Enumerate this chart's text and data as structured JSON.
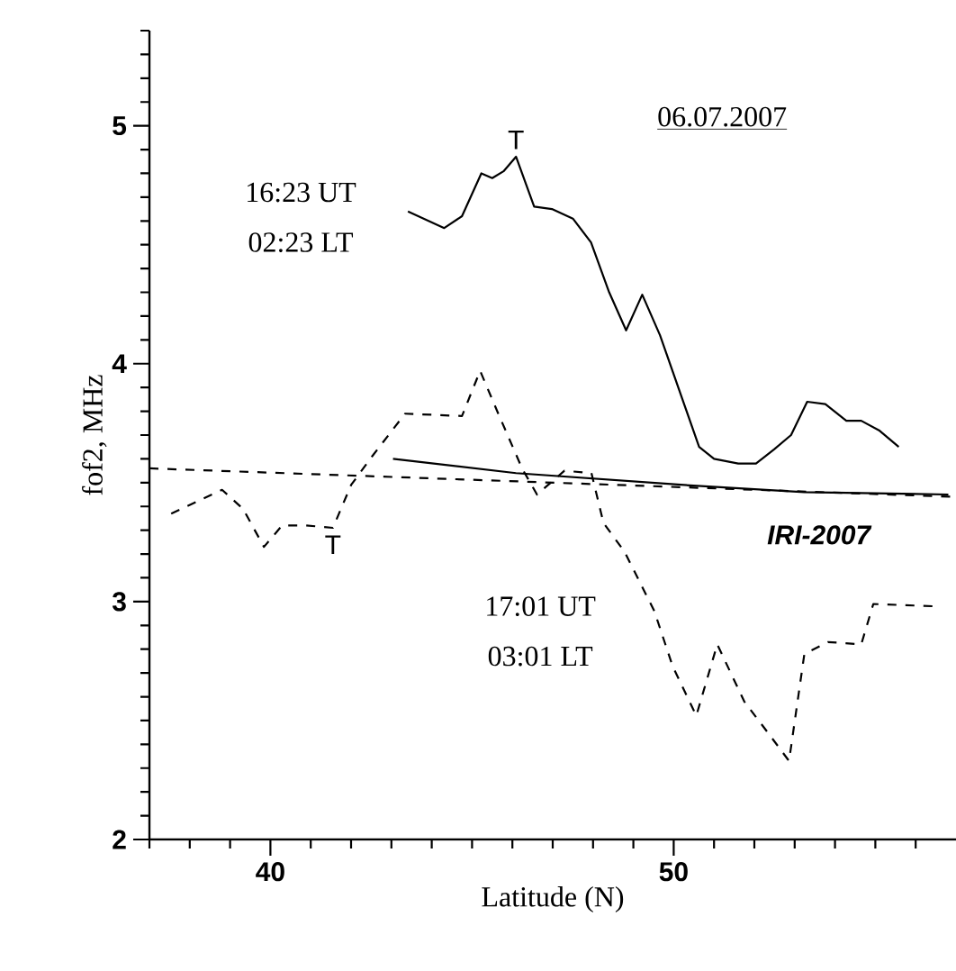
{
  "chart_data": {
    "type": "line",
    "xlabel": "Latitude (N)",
    "ylabel": "fof2, MHz",
    "xlim": [
      37,
      57
    ],
    "ylim": [
      2,
      5.4
    ],
    "xticks": [
      {
        "value": 37,
        "label": null
      },
      {
        "value": 38,
        "label": null
      },
      {
        "value": 39,
        "label": null
      },
      40,
      {
        "value": 41,
        "label": null
      },
      {
        "value": 42,
        "label": null
      },
      {
        "value": 43,
        "label": null
      },
      {
        "value": 44,
        "label": null
      },
      {
        "value": 45,
        "label": null
      },
      {
        "value": 46,
        "label": null
      },
      {
        "value": 47,
        "label": null
      },
      {
        "value": 48,
        "label": null
      },
      {
        "value": 49,
        "label": null
      },
      50,
      {
        "value": 51,
        "label": null
      },
      {
        "value": 52,
        "label": null
      },
      {
        "value": 53,
        "label": null
      },
      {
        "value": 54,
        "label": null
      },
      {
        "value": 55,
        "label": null
      },
      {
        "value": 56,
        "label": null
      }
    ],
    "yticks": [
      2,
      {
        "value": 2.1,
        "label": null
      },
      {
        "value": 2.2,
        "label": null
      },
      {
        "value": 2.3,
        "label": null
      },
      {
        "value": 2.4,
        "label": null
      },
      {
        "value": 2.5,
        "label": null
      },
      {
        "value": 2.6,
        "label": null
      },
      {
        "value": 2.7,
        "label": null
      },
      {
        "value": 2.8,
        "label": null
      },
      {
        "value": 2.9,
        "label": null
      },
      3,
      {
        "value": 3.1,
        "label": null
      },
      {
        "value": 3.2,
        "label": null
      },
      {
        "value": 3.3,
        "label": null
      },
      {
        "value": 3.4,
        "label": null
      },
      {
        "value": 3.5,
        "label": null
      },
      {
        "value": 3.6,
        "label": null
      },
      {
        "value": 3.7,
        "label": null
      },
      {
        "value": 3.8,
        "label": null
      },
      {
        "value": 3.9,
        "label": null
      },
      4,
      {
        "value": 4.1,
        "label": null
      },
      {
        "value": 4.2,
        "label": null
      },
      {
        "value": 4.3,
        "label": null
      },
      {
        "value": 4.4,
        "label": null
      },
      {
        "value": 4.5,
        "label": null
      },
      {
        "value": 4.6,
        "label": null
      },
      {
        "value": 4.7,
        "label": null
      },
      {
        "value": 4.8,
        "label": null
      },
      {
        "value": 4.9,
        "label": null
      },
      5,
      {
        "value": 5.1,
        "label": null
      },
      {
        "value": 5.2,
        "label": null
      },
      {
        "value": 5.3,
        "label": null
      },
      {
        "value": 5.4,
        "label": null
      }
    ],
    "marker": "none",
    "series": [
      {
        "color": "#000000",
        "line_style": "solid",
        "x": [
          43.41,
          44.31,
          44.75,
          45.23,
          45.5,
          45.79,
          46.09,
          46.54,
          46.98,
          47.5,
          47.95,
          48.4,
          48.82,
          49.22,
          49.66,
          50.63,
          51.0,
          51.6,
          52.04,
          52.49,
          52.91,
          53.31,
          53.76,
          54.28,
          54.65,
          55.09,
          55.58
        ],
        "values": [
          4.64,
          4.57,
          4.62,
          4.8,
          4.78,
          4.81,
          4.87,
          4.66,
          4.65,
          4.61,
          4.51,
          4.3,
          4.14,
          4.29,
          4.12,
          3.65,
          3.6,
          3.58,
          3.58,
          3.64,
          3.7,
          3.84,
          3.83,
          3.76,
          3.76,
          3.72,
          3.65
        ]
      },
      {
        "color": "#000000",
        "line_style": "dashed",
        "x": [
          37.54,
          38.8,
          39.32,
          39.84,
          40.29,
          40.88,
          41.55,
          42.0,
          42.52,
          43.34,
          44.75,
          45.2,
          45.65,
          46.24,
          46.61,
          47.29,
          47.96,
          48.26,
          48.78,
          49.52,
          49.97,
          50.56,
          51.08,
          51.75,
          52.42,
          52.86,
          53.24,
          53.83,
          54.65,
          54.95,
          56.51
        ],
        "values": [
          3.37,
          3.47,
          3.39,
          3.23,
          3.32,
          3.32,
          3.31,
          3.49,
          3.61,
          3.79,
          3.78,
          3.97,
          3.79,
          3.56,
          3.45,
          3.55,
          3.54,
          3.33,
          3.21,
          2.96,
          2.73,
          2.52,
          2.82,
          2.58,
          2.43,
          2.33,
          2.78,
          2.83,
          2.82,
          2.99,
          2.98
        ]
      },
      {
        "color": "#000000",
        "line_style": "solid",
        "x": [
          43.04,
          46.09,
          50.26,
          53.24,
          56.81
        ],
        "values": [
          3.6,
          3.54,
          3.49,
          3.46,
          3.45
        ]
      },
      {
        "color": "#000000",
        "line_style": "dashed",
        "x": [
          37,
          57
        ],
        "values": [
          3.56,
          3.44
        ]
      }
    ],
    "annotations": [
      "06.07.2007",
      "16:23 UT",
      "02:23 LT",
      "17:01 UT",
      "03:01 LT",
      "IRI-2007",
      {
        "text": "T",
        "x": 46.09,
        "y": 4.87
      },
      {
        "text": "T",
        "x": 41.55,
        "y": 3.31
      }
    ]
  }
}
